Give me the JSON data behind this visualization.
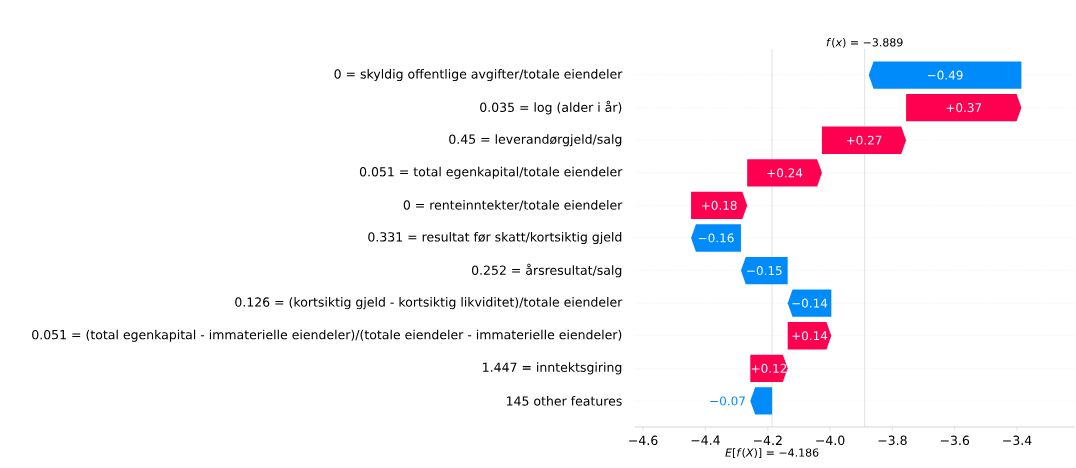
{
  "chart_data": {
    "type": "bar",
    "orientation": "horizontal",
    "categories": [
      "0 = skyldig offentlige avgifter/totale eiendeler",
      "0.035 = log (alder i år)",
      "0.45 = leverandørgjeld/salg",
      "0.051 = total egenkapital/totale eiendeler",
      "0 = renteinntekter/totale eiendeler",
      "0.331 = resultat før skatt/kortsiktig gjeld",
      "0.252 = årsresultat/salg",
      "0.126 = (kortsiktig gjeld - kortsiktig likviditet)/totale eiendeler",
      "0.051 = (total egenkapital - immaterielle eiendeler)/(totale eiendeler - immaterielle eiendeler)",
      "1.447 = inntektsgiring",
      "145 other features"
    ],
    "values": [
      -0.49,
      0.37,
      0.27,
      0.24,
      0.18,
      -0.16,
      -0.15,
      -0.14,
      0.14,
      0.12,
      -0.07
    ],
    "base": [
      -3.386,
      -3.756,
      -4.026,
      -4.266,
      -4.446,
      -4.286,
      -4.136,
      -3.996,
      -4.136,
      -4.256,
      -4.186
    ],
    "colors": [
      "#008bfb",
      "#ff0051",
      "#ff0051",
      "#ff0051",
      "#ff0051",
      "#008bfb",
      "#008bfb",
      "#008bfb",
      "#ff0051",
      "#ff0051",
      "#008bfb"
    ],
    "value_labels": [
      "−0.49",
      "+0.37",
      "+0.27",
      "+0.24",
      "+0.18",
      "−0.16",
      "−0.15",
      "−0.14",
      "+0.14",
      "+0.12",
      "−0.07"
    ],
    "xlim": [
      -4.626,
      -3.214
    ],
    "xticks": [
      {
        "value": -4.6,
        "label": "−4.6"
      },
      {
        "value": -4.4,
        "label": "−4.4"
      },
      {
        "value": -4.2,
        "label": "−4.2"
      },
      {
        "value": -4.0,
        "label": "−4.0"
      },
      {
        "value": -3.8,
        "label": "−3.8"
      },
      {
        "value": -3.6,
        "label": "−3.6"
      },
      {
        "value": -3.4,
        "label": "−3.4"
      }
    ],
    "grid": "y",
    "ref_lines": [
      {
        "axis": "x",
        "value": -3.889,
        "label": "*f*(*x*) = −3.889"
      },
      {
        "axis": "x",
        "value": -4.186,
        "label": "*E*[*f*(*X*)] = −4.186"
      }
    ]
  }
}
